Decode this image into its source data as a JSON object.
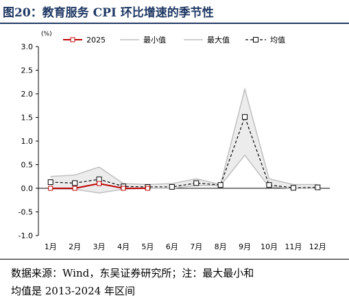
{
  "figure": {
    "title": "图20：教育服务 CPI 环比增速的季节性",
    "note_line1": "数据来源：Wind，东吴证券研究所；注：最大最小和",
    "note_line2": "均值是 2013-2024 年区间"
  },
  "chart_data": {
    "type": "line",
    "ylabel": "(%)",
    "ylim": [
      -1.0,
      3.0
    ],
    "yticks": [
      "3.0",
      "2.5",
      "2.0",
      "1.5",
      "1.0",
      "0.5",
      "0.0",
      "-0.5",
      "-1.0"
    ],
    "categories": [
      "1月",
      "2月",
      "3月",
      "4月",
      "5月",
      "6月",
      "7月",
      "8月",
      "9月",
      "10月",
      "11月",
      "12月"
    ],
    "legend_position": "top",
    "series": [
      {
        "name": "2025",
        "color": "#c00000",
        "values": [
          0.0,
          0.0,
          0.1,
          0.0,
          0.0,
          null,
          null,
          null,
          null,
          null,
          null,
          null
        ]
      },
      {
        "name": "最小值",
        "color": "#bfbfbf",
        "values": [
          -0.02,
          -0.02,
          -0.1,
          -0.02,
          0.0,
          0.0,
          0.06,
          0.06,
          0.7,
          0.03,
          0.0,
          0.0
        ]
      },
      {
        "name": "最大值",
        "color": "#bfbfbf",
        "values": [
          0.25,
          0.28,
          0.45,
          0.1,
          0.08,
          0.1,
          0.2,
          0.08,
          2.1,
          0.2,
          0.08,
          0.08
        ]
      },
      {
        "name": "均值",
        "color": "#000000",
        "values": [
          0.13,
          0.11,
          0.19,
          0.04,
          0.03,
          0.03,
          0.11,
          0.07,
          1.51,
          0.07,
          0.01,
          0.02
        ]
      }
    ]
  }
}
